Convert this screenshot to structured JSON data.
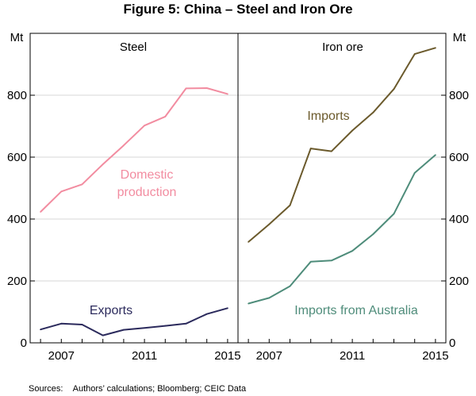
{
  "chart_data": {
    "type": "line",
    "title": "Figure 5: China – Steel and Iron Ore",
    "source": "Sources:    Authors’ calculations; Bloomberg; CEIC Data",
    "y_unit_label": "Mt",
    "ylim": [
      0,
      1000
    ],
    "yticks": [
      0,
      200,
      400,
      600,
      800
    ],
    "xlim": [
      2005.5,
      2015.5
    ],
    "xticks": [
      2007,
      2011,
      2015
    ],
    "xtick_labels": [
      "2007",
      "2011",
      "2015"
    ],
    "grid": true,
    "colors": {
      "domestic": "#f28ca0",
      "exports": "#2b2a5c",
      "imports": "#6b5a2c",
      "australia": "#4e8c7a",
      "grid": "#d7d7d7",
      "axis": "#000000"
    },
    "panels": [
      {
        "name": "steel",
        "title": "Steel",
        "series": [
          {
            "name": "Domestic production",
            "label_lines": [
              "Domestic",
              "production"
            ],
            "color_key": "domestic",
            "x": [
              2006,
              2007,
              2008,
              2009,
              2010,
              2011,
              2012,
              2013,
              2014,
              2015
            ],
            "values": [
              423,
              489,
              512,
              577,
              638,
              702,
              731,
              822,
              823,
              804
            ]
          },
          {
            "name": "Exports",
            "label_lines": [
              "Exports"
            ],
            "color_key": "exports",
            "x": [
              2006,
              2007,
              2008,
              2009,
              2010,
              2011,
              2012,
              2013,
              2014,
              2015
            ],
            "values": [
              43,
              62,
              59,
              24,
              42,
              48,
              55,
              62,
              93,
              112
            ]
          }
        ]
      },
      {
        "name": "iron-ore",
        "title": "Iron ore",
        "series": [
          {
            "name": "Imports",
            "label_lines": [
              "Imports"
            ],
            "color_key": "imports",
            "x": [
              2006,
              2007,
              2008,
              2009,
              2010,
              2011,
              2012,
              2013,
              2014,
              2015
            ],
            "values": [
              326,
              383,
              444,
              628,
              619,
              686,
              744,
              820,
              933,
              953
            ]
          },
          {
            "name": "Imports from Australia",
            "label_lines": [
              "Imports from Australia"
            ],
            "color_key": "australia",
            "x": [
              2006,
              2007,
              2008,
              2009,
              2010,
              2011,
              2012,
              2013,
              2014,
              2015
            ],
            "values": [
              127,
              145,
              183,
              262,
              266,
              297,
              351,
              417,
              549,
              607
            ]
          }
        ]
      }
    ]
  }
}
